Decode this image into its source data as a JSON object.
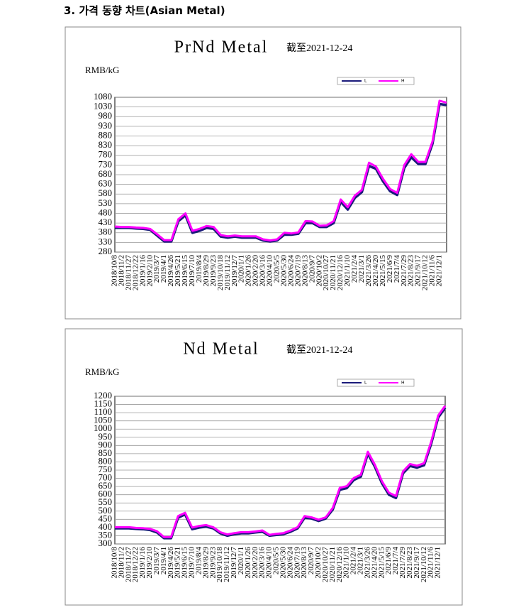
{
  "heading": "3. 가격 동향 차트(Asian Metal)",
  "chart_data": [
    {
      "type": "line",
      "title": "PrNd Metal",
      "subtitle": "截至2021-12-24",
      "ylabel": "RMB/kG",
      "categories": [
        "2018/10/8",
        "2018/11/2",
        "2018/11/27",
        "2018/12/22",
        "2019/1/16",
        "2019/2/10",
        "2019/3/7",
        "2019/4/1",
        "2019/4/26",
        "2019/5/21",
        "2019/6/15",
        "2019/7/10",
        "2019/8/4",
        "2019/8/29",
        "2019/9/23",
        "2019/10/18",
        "2019/11/12",
        "2019/12/7",
        "2020/1/1",
        "2020/1/26",
        "2020/2/20",
        "2020/3/16",
        "2020/4/10",
        "2020/5/5",
        "2020/5/30",
        "2020/6/24",
        "2020/7/19",
        "2020/8/13",
        "2020/9/7",
        "2020/10/2",
        "2020/10/27",
        "2020/11/21",
        "2020/12/16",
        "2021/1/10",
        "2021/2/4",
        "2021/3/1",
        "2021/3/26",
        "2021/4/20",
        "2021/5/15",
        "2021/6/9",
        "2021/7/4",
        "2021/7/29",
        "2021/8/23",
        "2021/9/17",
        "2021/10/12",
        "2021/11/6",
        "2021/12/1",
        null
      ],
      "series": [
        {
          "name": "L",
          "color": "#1a1a7a",
          "values": [
            405,
            405,
            405,
            402,
            400,
            395,
            365,
            335,
            335,
            440,
            470,
            380,
            390,
            405,
            400,
            360,
            355,
            360,
            355,
            355,
            355,
            340,
            335,
            340,
            370,
            370,
            375,
            430,
            430,
            410,
            410,
            430,
            540,
            500,
            560,
            590,
            725,
            710,
            645,
            595,
            575,
            715,
            770,
            735,
            735,
            840,
            1045,
            1040
          ]
        },
        {
          "name": "H",
          "color": "#ff00ff",
          "values": [
            412,
            410,
            410,
            407,
            405,
            400,
            372,
            342,
            342,
            450,
            480,
            390,
            400,
            415,
            410,
            368,
            362,
            366,
            362,
            362,
            362,
            346,
            340,
            346,
            380,
            376,
            382,
            440,
            438,
            416,
            418,
            440,
            552,
            512,
            572,
            602,
            742,
            722,
            658,
            606,
            586,
            730,
            786,
            746,
            746,
            852,
            1062,
            1052
          ]
        }
      ],
      "ylim": [
        280,
        1080
      ],
      "yticks": [
        280,
        330,
        380,
        430,
        480,
        530,
        580,
        630,
        680,
        730,
        780,
        830,
        880,
        930,
        980,
        1030,
        1080
      ],
      "grid": true
    },
    {
      "type": "line",
      "title": "Nd Metal",
      "subtitle": "截至2021-12-24",
      "ylabel": "RMB/kG",
      "categories": [
        "2018/10/8",
        "2018/11/2",
        "2018/11/27",
        "2018/12/22",
        "2019/1/16",
        "2019/2/10",
        "2019/3/7",
        "2019/4/1",
        "2019/4/26",
        "2019/5/21",
        "2019/6/15",
        "2019/7/10",
        "2019/8/4",
        "2019/8/29",
        "2019/9/23",
        "2019/10/18",
        "2019/11/12",
        "2019/12/7",
        "2020/1/1",
        "2020/1/26",
        "2020/2/20",
        "2020/3/16",
        "2020/4/10",
        "2020/5/5",
        "2020/5/30",
        "2020/6/24",
        "2020/7/19",
        "2020/8/13",
        "2020/9/7",
        "2020/10/2",
        "2020/10/27",
        "2020/11/21",
        "2020/12/16",
        "2021/1/10",
        "2021/2/4",
        "2021/3/1",
        "2021/3/26",
        "2021/4/20",
        "2021/5/15",
        "2021/6/9",
        "2021/7/4",
        "2021/7/29",
        "2021/8/23",
        "2021/9/17",
        "2021/10/12",
        "2021/11/6",
        "2021/12/1",
        null
      ],
      "series": [
        {
          "name": "L",
          "color": "#1a1a7a",
          "values": [
            395,
            395,
            395,
            392,
            390,
            385,
            370,
            335,
            335,
            460,
            480,
            390,
            400,
            405,
            395,
            365,
            350,
            360,
            365,
            365,
            370,
            375,
            350,
            355,
            360,
            375,
            395,
            460,
            455,
            440,
            455,
            510,
            630,
            640,
            690,
            710,
            850,
            770,
            670,
            600,
            580,
            730,
            775,
            765,
            780,
            910,
            1070,
            1130
          ]
        },
        {
          "name": "H",
          "color": "#ff00ff",
          "values": [
            402,
            402,
            402,
            398,
            396,
            392,
            378,
            342,
            342,
            470,
            490,
            400,
            410,
            415,
            402,
            372,
            358,
            366,
            372,
            372,
            376,
            382,
            356,
            362,
            366,
            382,
            402,
            470,
            462,
            448,
            462,
            520,
            642,
            652,
            702,
            722,
            862,
            782,
            682,
            612,
            592,
            742,
            787,
            777,
            792,
            922,
            1082,
            1142
          ]
        }
      ],
      "ylim": [
        300,
        1200
      ],
      "yticks": [
        300,
        350,
        400,
        450,
        500,
        550,
        600,
        650,
        700,
        750,
        800,
        850,
        900,
        950,
        1000,
        1050,
        1100,
        1150,
        1200
      ],
      "grid": true
    }
  ]
}
